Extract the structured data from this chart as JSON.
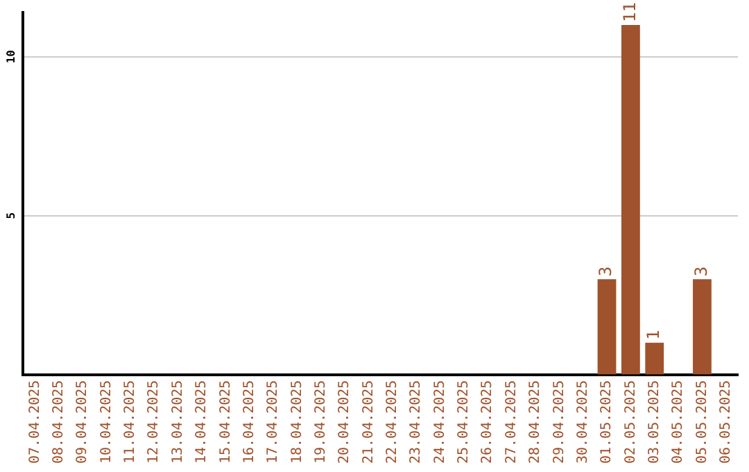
{
  "chart_data": {
    "type": "bar",
    "categories": [
      "07.04.2025",
      "08.04.2025",
      "09.04.2025",
      "10.04.2025",
      "11.04.2025",
      "12.04.2025",
      "13.04.2025",
      "14.04.2025",
      "15.04.2025",
      "16.04.2025",
      "17.04.2025",
      "18.04.2025",
      "19.04.2025",
      "20.04.2025",
      "21.04.2025",
      "22.04.2025",
      "23.04.2025",
      "24.04.2025",
      "25.04.2025",
      "26.04.2025",
      "27.04.2025",
      "28.04.2025",
      "29.04.2025",
      "30.04.2025",
      "01.05.2025",
      "02.05.2025",
      "03.05.2025",
      "04.05.2025",
      "05.05.2025",
      "06.05.2025"
    ],
    "values": [
      0,
      0,
      0,
      0,
      0,
      0,
      0,
      0,
      0,
      0,
      0,
      0,
      0,
      0,
      0,
      0,
      0,
      0,
      0,
      0,
      0,
      0,
      0,
      0,
      3,
      11,
      1,
      0,
      3,
      0
    ],
    "value_labels": [
      null,
      null,
      null,
      null,
      null,
      null,
      null,
      null,
      null,
      null,
      null,
      null,
      null,
      null,
      null,
      null,
      null,
      null,
      null,
      null,
      null,
      null,
      null,
      null,
      "3",
      "11",
      "1",
      null,
      "3",
      null
    ],
    "color": "#a0522d",
    "ylim": [
      0,
      11.4
    ],
    "yticks": [
      5,
      10
    ],
    "grid": "y",
    "legend": false
  }
}
